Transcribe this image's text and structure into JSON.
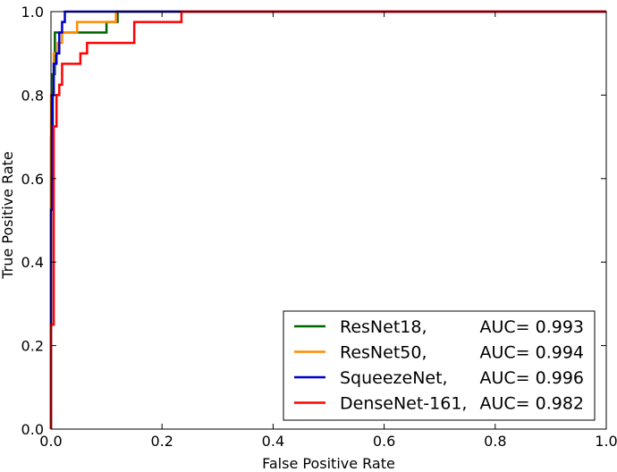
{
  "chart_data": {
    "type": "line",
    "title": "",
    "xlabel": "False Positive Rate",
    "ylabel": "True Positive Rate",
    "xlim": [
      0,
      1
    ],
    "ylim": [
      0,
      1
    ],
    "xticks": [
      "0.0",
      "0.2",
      "0.4",
      "0.6",
      "0.8",
      "1.0"
    ],
    "yticks": [
      "0.0",
      "0.2",
      "0.4",
      "0.6",
      "0.8",
      "1.0"
    ],
    "grid": false,
    "legend_position": "bottom-right",
    "series": [
      {
        "name": "ResNet18,",
        "auc_label": "AUC= 0.993",
        "color": "#006400",
        "x": [
          0,
          0,
          0.003,
          0.003,
          0.007,
          0.007,
          0.015,
          0.015,
          0.1,
          0.1,
          0.12,
          0.12,
          1.0
        ],
        "y": [
          0,
          0.7,
          0.7,
          0.85,
          0.85,
          0.95,
          0.95,
          0.95,
          0.95,
          0.975,
          0.975,
          1.0,
          1.0
        ]
      },
      {
        "name": "ResNet50,",
        "auc_label": "AUC= 0.994",
        "color": "#FF8C00",
        "x": [
          0,
          0,
          0.005,
          0.005,
          0.012,
          0.012,
          0.02,
          0.02,
          0.047,
          0.047,
          0.117,
          0.117,
          1.0
        ],
        "y": [
          0,
          0.8,
          0.8,
          0.9,
          0.9,
          0.925,
          0.925,
          0.95,
          0.95,
          0.975,
          0.975,
          1.0,
          1.0
        ]
      },
      {
        "name": "SqueezeNet,",
        "auc_label": "AUC= 0.996",
        "color": "#0000CD",
        "x": [
          0,
          0,
          0.003,
          0.003,
          0.005,
          0.005,
          0.01,
          0.01,
          0.015,
          0.015,
          0.02,
          0.02,
          0.025,
          0.025,
          1.0
        ],
        "y": [
          0,
          0.525,
          0.525,
          0.8,
          0.8,
          0.875,
          0.875,
          0.9,
          0.9,
          0.95,
          0.95,
          0.975,
          0.975,
          1.0,
          1.0
        ]
      },
      {
        "name": "DenseNet-161,",
        "auc_label": "AUC= 0.982",
        "color": "#FF0000",
        "x": [
          0,
          0,
          0.005,
          0.005,
          0.01,
          0.01,
          0.015,
          0.015,
          0.02,
          0.02,
          0.053,
          0.053,
          0.065,
          0.065,
          0.15,
          0.15,
          0.235,
          0.235,
          1.0
        ],
        "y": [
          0,
          0.25,
          0.25,
          0.725,
          0.725,
          0.8,
          0.8,
          0.825,
          0.825,
          0.875,
          0.875,
          0.9,
          0.9,
          0.925,
          0.925,
          0.975,
          0.975,
          1.0,
          1.0
        ]
      }
    ]
  }
}
